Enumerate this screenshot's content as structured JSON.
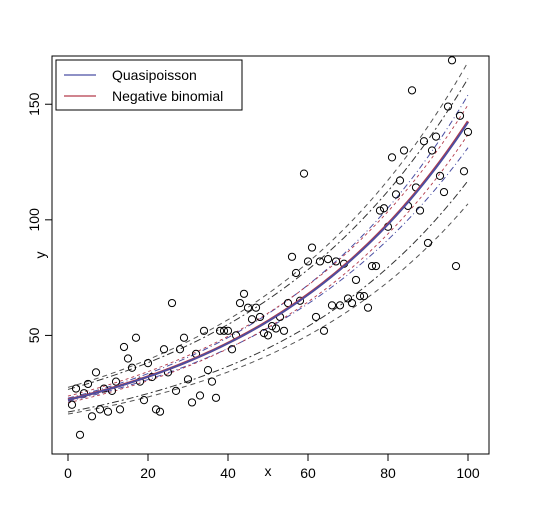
{
  "chart_data": {
    "type": "scatter",
    "title": "",
    "xlabel": "x",
    "ylabel": "y",
    "xlim": [
      0,
      100
    ],
    "ylim": [
      0,
      170
    ],
    "xticks": [
      0,
      20,
      40,
      60,
      80,
      100
    ],
    "yticks": [
      50,
      100,
      150
    ],
    "legend": {
      "position": "top-left",
      "entries": [
        {
          "name": "Quasipoisson",
          "color": "#4a4fa3"
        },
        {
          "name": "Negative binomial",
          "color": "#b33a4a"
        }
      ]
    },
    "points": [
      [
        1,
        20
      ],
      [
        2,
        27
      ],
      [
        3,
        7
      ],
      [
        4,
        25
      ],
      [
        5,
        29
      ],
      [
        6,
        15
      ],
      [
        7,
        34
      ],
      [
        8,
        18
      ],
      [
        9,
        27
      ],
      [
        10,
        17
      ],
      [
        11,
        26
      ],
      [
        12,
        30
      ],
      [
        13,
        18
      ],
      [
        14,
        45
      ],
      [
        15,
        40
      ],
      [
        16,
        36
      ],
      [
        17,
        49
      ],
      [
        18,
        30
      ],
      [
        19,
        22
      ],
      [
        20,
        38
      ],
      [
        21,
        32
      ],
      [
        22,
        18
      ],
      [
        23,
        17
      ],
      [
        24,
        44
      ],
      [
        25,
        34
      ],
      [
        26,
        64
      ],
      [
        27,
        26
      ],
      [
        28,
        44
      ],
      [
        29,
        49
      ],
      [
        30,
        31
      ],
      [
        31,
        21
      ],
      [
        32,
        42
      ],
      [
        33,
        24
      ],
      [
        34,
        52
      ],
      [
        35,
        35
      ],
      [
        36,
        30
      ],
      [
        37,
        23
      ],
      [
        38,
        52
      ],
      [
        39,
        52
      ],
      [
        40,
        52
      ],
      [
        41,
        44
      ],
      [
        42,
        50
      ],
      [
        43,
        64
      ],
      [
        44,
        68
      ],
      [
        45,
        62
      ],
      [
        46,
        57
      ],
      [
        47,
        62
      ],
      [
        48,
        58
      ],
      [
        49,
        51
      ],
      [
        50,
        50
      ],
      [
        51,
        54
      ],
      [
        52,
        53
      ],
      [
        53,
        58
      ],
      [
        54,
        52
      ],
      [
        55,
        64
      ],
      [
        56,
        84
      ],
      [
        57,
        77
      ],
      [
        58,
        65
      ],
      [
        59,
        120
      ],
      [
        60,
        82
      ],
      [
        61,
        88
      ],
      [
        62,
        58
      ],
      [
        63,
        82
      ],
      [
        64,
        52
      ],
      [
        65,
        83
      ],
      [
        66,
        63
      ],
      [
        67,
        82
      ],
      [
        68,
        63
      ],
      [
        69,
        81
      ],
      [
        70,
        66
      ],
      [
        71,
        64
      ],
      [
        72,
        74
      ],
      [
        73,
        67
      ],
      [
        74,
        67
      ],
      [
        75,
        62
      ],
      [
        76,
        80
      ],
      [
        77,
        80
      ],
      [
        78,
        104
      ],
      [
        79,
        105
      ],
      [
        80,
        97
      ],
      [
        81,
        127
      ],
      [
        82,
        111
      ],
      [
        83,
        117
      ],
      [
        84,
        130
      ],
      [
        85,
        106
      ],
      [
        86,
        156
      ],
      [
        87,
        114
      ],
      [
        88,
        104
      ],
      [
        89,
        134
      ],
      [
        90,
        90
      ],
      [
        91,
        130
      ],
      [
        92,
        136
      ],
      [
        93,
        119
      ],
      [
        94,
        112
      ],
      [
        95,
        149
      ],
      [
        96,
        169
      ],
      [
        97,
        80
      ],
      [
        98,
        145
      ],
      [
        99,
        121
      ],
      [
        100,
        138
      ]
    ],
    "fit": {
      "intercept": 3.1,
      "slope": 0.0186
    },
    "bands": {
      "quasipoisson_confidence": [
        0.95,
        1.05
      ],
      "quasipoisson_prediction": [
        0.78,
        1.18
      ],
      "negative_binomial_confidence": [
        0.94,
        1.07
      ],
      "negative_binomial_prediction": [
        0.75,
        1.21
      ]
    },
    "grid": false
  }
}
